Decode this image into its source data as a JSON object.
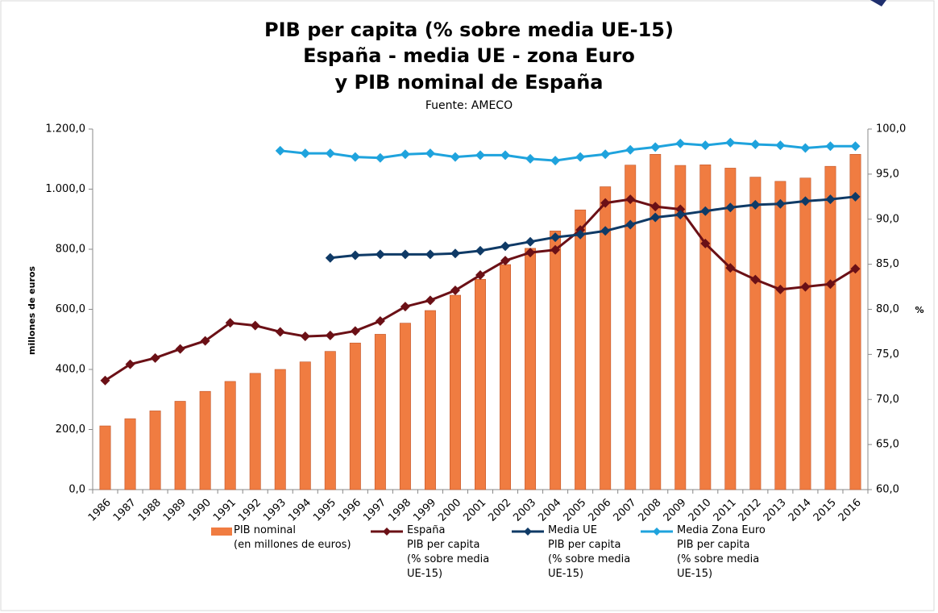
{
  "chart_data": {
    "type": "bar_line",
    "title": "PIB per capita (% sobre media UE-15)",
    "subtitle_lines": [
      "España - media UE - zona Euro",
      "y PIB nominal de España"
    ],
    "source": "Fuente: AMECO",
    "y_label": "millones de euros",
    "y2_label": "%",
    "categories": [
      "1986",
      "1987",
      "1988",
      "1989",
      "1990",
      "1991",
      "1992",
      "1993",
      "1994",
      "1995",
      "1996",
      "1997",
      "1998",
      "1999",
      "2000",
      "2001",
      "2002",
      "2003",
      "2004",
      "2005",
      "2006",
      "2007",
      "2008",
      "2009",
      "2010",
      "2011",
      "2012",
      "2013",
      "2014",
      "2015",
      "2016"
    ],
    "ylim": [
      0,
      1200
    ],
    "yticks": [
      {
        "value": 0,
        "label": "0,0"
      },
      {
        "value": 200,
        "label": "200,0"
      },
      {
        "value": 400,
        "label": "400,0"
      },
      {
        "value": 600,
        "label": "600,0"
      },
      {
        "value": 800,
        "label": "800,0"
      },
      {
        "value": 1000,
        "label": "1.000,0"
      },
      {
        "value": 1200,
        "label": "1.200,0"
      }
    ],
    "y2lim": [
      60,
      100
    ],
    "y2ticks": [
      {
        "value": 60,
        "label": "60,0"
      },
      {
        "value": 65,
        "label": "65,0"
      },
      {
        "value": 70,
        "label": "70,0"
      },
      {
        "value": 75,
        "label": "75,0"
      },
      {
        "value": 80,
        "label": "80,0"
      },
      {
        "value": 85,
        "label": "85,0"
      },
      {
        "value": 90,
        "label": "90,0"
      },
      {
        "value": 95,
        "label": "95,0"
      },
      {
        "value": 100,
        "label": "100,0"
      }
    ],
    "grid": false,
    "series": [
      {
        "name": "PIB nominal\n(en millones de euros)",
        "type": "bar",
        "axis": "y",
        "color": "#f07c41",
        "values": [
          212,
          236,
          262,
          294,
          327,
          360,
          387,
          400,
          425,
          460,
          488,
          517,
          554,
          596,
          647,
          700,
          749,
          803,
          861,
          931,
          1008,
          1080,
          1116,
          1079,
          1081,
          1070,
          1040,
          1026,
          1037,
          1076,
          1116
        ]
      },
      {
        "name": "España\nPIB per capita\n(% sobre media\nUE-15)",
        "type": "line",
        "axis": "y2",
        "color": "#6b1016",
        "values": [
          72.1,
          73.9,
          74.6,
          75.6,
          76.5,
          78.5,
          78.2,
          77.5,
          77.0,
          77.1,
          77.6,
          78.7,
          80.3,
          81.0,
          82.1,
          83.8,
          85.4,
          86.3,
          86.6,
          88.8,
          91.8,
          92.2,
          91.4,
          91.1,
          87.3,
          84.6,
          83.3,
          82.2,
          82.5,
          82.8,
          84.5
        ]
      },
      {
        "name": "Media UE\nPIB per capita\n(% sobre media\nUE-15)",
        "type": "line",
        "axis": "y2",
        "color": "#0f3a66",
        "values": [
          null,
          null,
          null,
          null,
          null,
          null,
          null,
          null,
          null,
          85.7,
          86.0,
          86.1,
          86.1,
          86.1,
          86.2,
          86.5,
          87.0,
          87.5,
          88.0,
          88.3,
          88.7,
          89.4,
          90.2,
          90.5,
          90.9,
          91.3,
          91.6,
          91.7,
          92.0,
          92.2,
          92.5
        ]
      },
      {
        "name": "Media Zona Euro\nPIB per capita\n(% sobre media\nUE-15)",
        "type": "line",
        "axis": "y2",
        "color": "#1fa3dd",
        "values": [
          null,
          null,
          null,
          null,
          null,
          null,
          null,
          97.6,
          97.3,
          97.3,
          96.9,
          96.8,
          97.2,
          97.3,
          96.9,
          97.1,
          97.1,
          96.7,
          96.5,
          96.9,
          97.2,
          97.7,
          98.0,
          98.4,
          98.2,
          98.5,
          98.3,
          98.2,
          97.9,
          98.1,
          98.1
        ]
      }
    ]
  }
}
